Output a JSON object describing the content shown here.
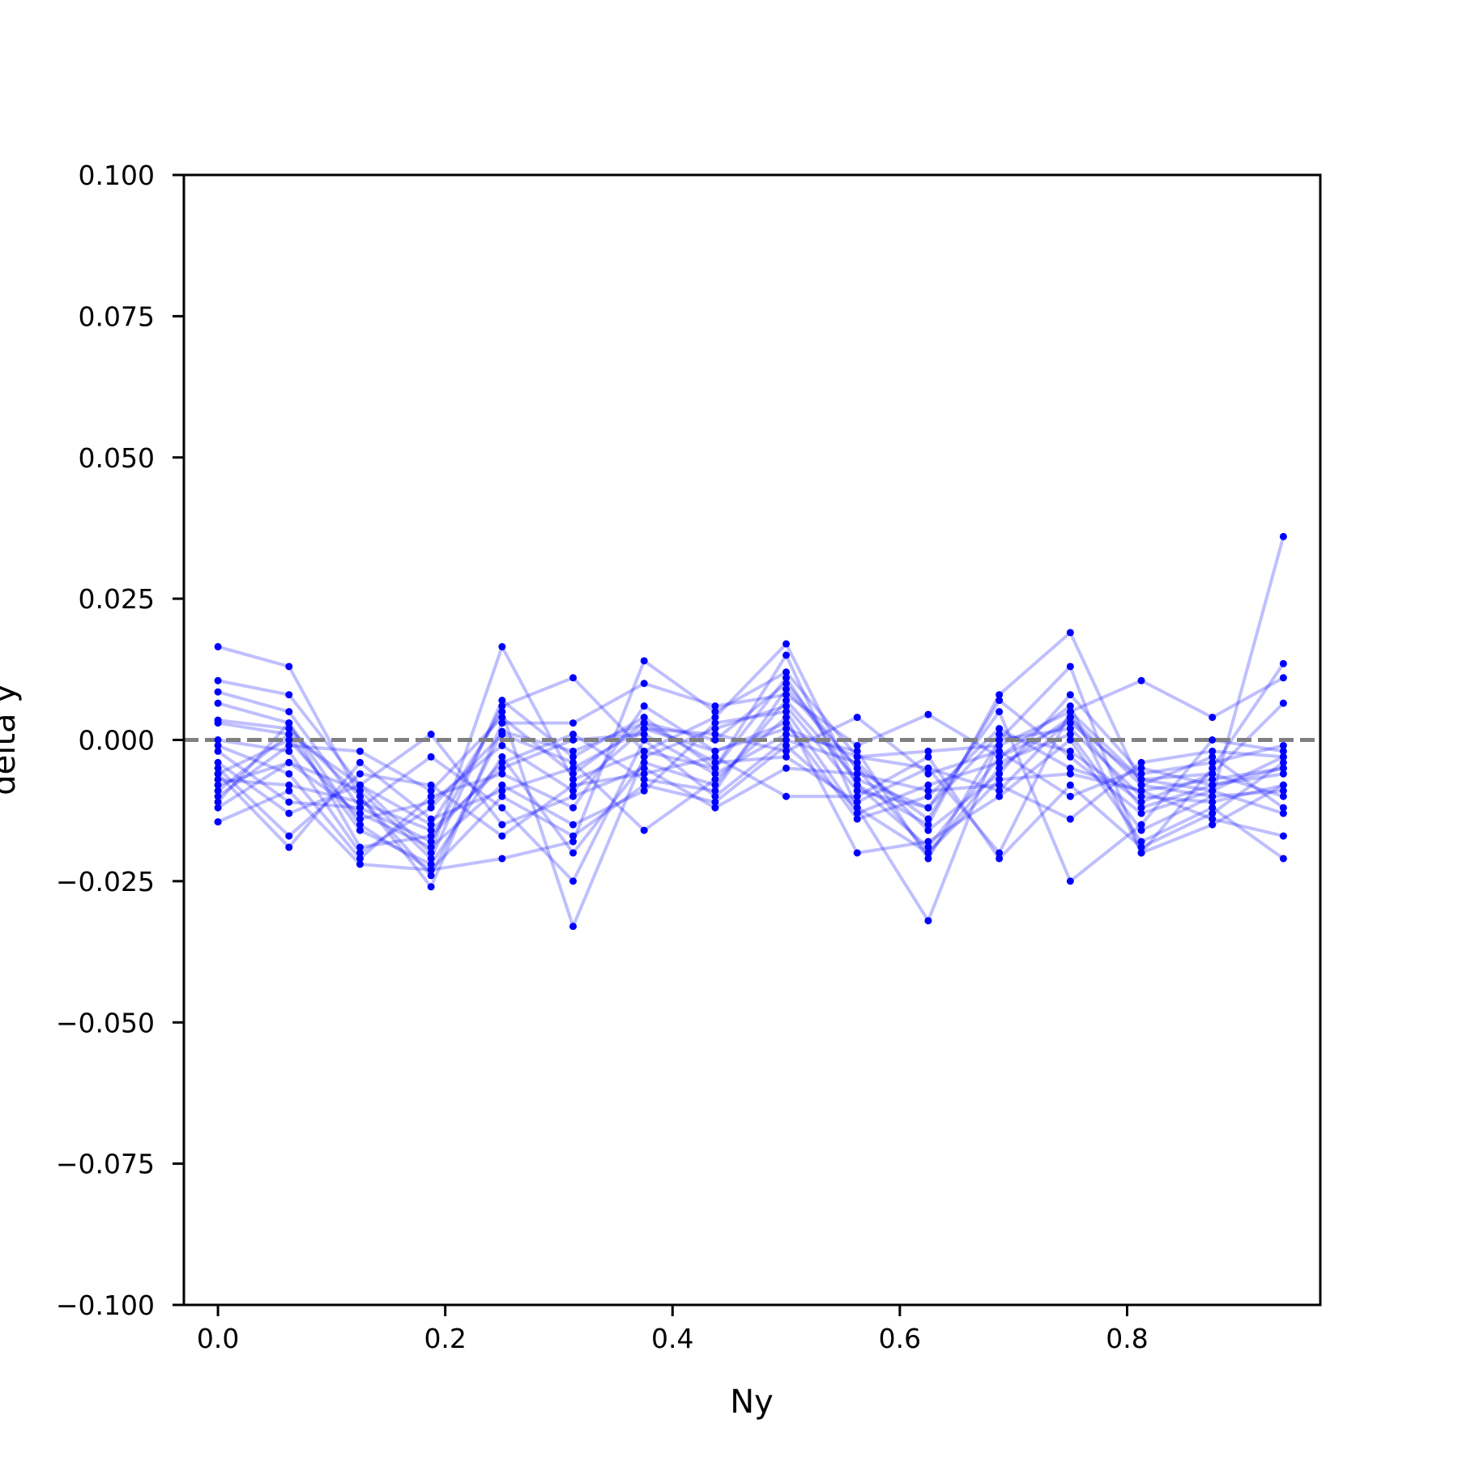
{
  "chart_data": {
    "type": "line",
    "title": "",
    "xlabel": "Ny",
    "ylabel": "delta y",
    "xlim": [
      -0.03,
      0.97
    ],
    "ylim": [
      -0.1,
      0.1
    ],
    "xticks": [
      "0.0",
      "0.2",
      "0.4",
      "0.6",
      "0.8"
    ],
    "yticks": [
      "0.100",
      "0.075",
      "0.050",
      "0.025",
      "0.000",
      "−0.025",
      "−0.050",
      "−0.075",
      "−0.100"
    ],
    "grid": false,
    "legend": "none",
    "reference_line": {
      "y": 0.0,
      "style": "dashed",
      "color": "#808080"
    },
    "series_color": "#0000ff",
    "series_opacity": 0.25,
    "x": [
      0.0,
      0.0625,
      0.125,
      0.1875,
      0.25,
      0.3125,
      0.375,
      0.4375,
      0.5,
      0.5625,
      0.625,
      0.6875,
      0.75,
      0.8125,
      0.875,
      0.9375
    ],
    "series": [
      {
        "values": [
          0.0165,
          0.013,
          -0.01,
          -0.024,
          0.0015,
          -0.002,
          0.003,
          0.0,
          0.01,
          -0.005,
          -0.02,
          -0.005,
          0.004,
          -0.012,
          -0.008,
          -0.005
        ]
      },
      {
        "values": [
          0.0105,
          0.008,
          -0.008,
          -0.02,
          0.0165,
          -0.007,
          -0.002,
          0.004,
          0.017,
          -0.008,
          -0.015,
          0.008,
          0.019,
          -0.008,
          -0.01,
          0.036
        ]
      },
      {
        "values": [
          0.0085,
          0.005,
          -0.012,
          -0.018,
          0.006,
          0.011,
          -0.002,
          -0.005,
          0.015,
          -0.012,
          -0.032,
          0.0,
          0.013,
          -0.02,
          -0.005,
          0.0135
        ]
      },
      {
        "values": [
          0.0065,
          0.003,
          -0.015,
          -0.023,
          -0.021,
          -0.018,
          0.014,
          0.005,
          0.012,
          -0.003,
          -0.005,
          -0.02,
          0.005,
          0.0105,
          0.004,
          0.011
        ]
      },
      {
        "values": [
          0.0035,
          0.002,
          -0.01,
          -0.026,
          0.003,
          0.003,
          0.01,
          0.006,
          0.008,
          -0.001,
          0.0045,
          -0.003,
          0.003,
          -0.007,
          -0.006,
          0.0065
        ]
      },
      {
        "values": [
          0.003,
          0.001,
          -0.008,
          -0.015,
          0.005,
          -0.033,
          -0.003,
          0.002,
          0.006,
          -0.009,
          -0.012,
          0.005,
          -0.025,
          -0.015,
          0.0,
          -0.002
        ]
      },
      {
        "values": [
          0.0,
          -0.002,
          -0.02,
          -0.012,
          0.001,
          -0.004,
          -0.016,
          -0.007,
          0.004,
          -0.02,
          -0.018,
          -0.01,
          0.0,
          -0.018,
          -0.012,
          -0.021
        ]
      },
      {
        "values": [
          -0.001,
          -0.006,
          -0.021,
          -0.01,
          -0.006,
          -0.012,
          0.006,
          -0.002,
          0.003,
          -0.014,
          -0.01,
          0.002,
          -0.005,
          -0.009,
          -0.014,
          -0.017
        ]
      },
      {
        "values": [
          -0.002,
          -0.011,
          -0.012,
          -0.003,
          -0.012,
          -0.025,
          0.0,
          -0.01,
          0.0,
          -0.004,
          -0.016,
          -0.006,
          0.008,
          -0.006,
          -0.004,
          -0.001
        ]
      },
      {
        "values": [
          -0.004,
          -0.013,
          -0.008,
          0.001,
          -0.015,
          -0.01,
          -0.005,
          -0.012,
          -0.005,
          -0.006,
          -0.009,
          -0.008,
          -0.014,
          -0.004,
          -0.002,
          -0.003
        ]
      },
      {
        "values": [
          -0.005,
          -0.017,
          -0.006,
          -0.008,
          -0.017,
          -0.008,
          -0.006,
          -0.003,
          -0.01,
          -0.01,
          -0.003,
          -0.021,
          -0.008,
          -0.019,
          -0.013,
          -0.004
        ]
      },
      {
        "values": [
          -0.006,
          -0.019,
          -0.004,
          -0.014,
          -0.009,
          -0.005,
          0.002,
          0.001,
          -0.002,
          0.004,
          -0.006,
          -0.002,
          -0.01,
          -0.005,
          -0.008,
          -0.006
        ]
      },
      {
        "values": [
          -0.007,
          -0.008,
          -0.011,
          -0.016,
          -0.005,
          0.0,
          0.001,
          -0.006,
          0.001,
          -0.002,
          -0.021,
          0.0,
          0.002,
          -0.01,
          -0.011,
          -0.008
        ]
      },
      {
        "values": [
          -0.008,
          -0.004,
          -0.013,
          -0.019,
          -0.008,
          -0.015,
          -0.009,
          0.003,
          0.005,
          -0.013,
          -0.008,
          -0.004,
          0.001,
          -0.016,
          -0.01,
          -0.009
        ]
      },
      {
        "values": [
          -0.009,
          0.001,
          -0.016,
          -0.022,
          -0.003,
          -0.02,
          -0.004,
          -0.008,
          0.007,
          -0.007,
          -0.012,
          0.001,
          -0.002,
          -0.011,
          -0.006,
          -0.01
        ]
      },
      {
        "values": [
          -0.01,
          -0.001,
          -0.002,
          -0.009,
          0.004,
          -0.006,
          0.003,
          -0.004,
          -0.003,
          -0.011,
          -0.005,
          -0.009,
          0.004,
          -0.008,
          -0.003,
          -0.012
        ]
      },
      {
        "values": [
          -0.011,
          0.003,
          -0.019,
          -0.017,
          -0.004,
          0.001,
          -0.007,
          -0.009,
          0.009,
          -0.005,
          -0.014,
          0.007,
          -0.003,
          -0.013,
          -0.009,
          -0.013
        ]
      },
      {
        "values": [
          -0.012,
          -0.004,
          -0.009,
          -0.021,
          0.007,
          -0.003,
          0.004,
          -0.005,
          0.011,
          -0.008,
          -0.019,
          -0.003,
          0.006,
          -0.02,
          -0.015,
          -0.008
        ]
      },
      {
        "values": [
          -0.0145,
          -0.009,
          -0.022,
          -0.023,
          -0.01,
          -0.017,
          -0.008,
          -0.011,
          -0.001,
          -0.012,
          -0.02,
          -0.007,
          -0.006,
          -0.009,
          -0.007,
          -0.005
        ]
      },
      {
        "values": [
          -0.006,
          0.0,
          -0.014,
          -0.011,
          -0.001,
          -0.009,
          0.002,
          -0.002,
          0.002,
          -0.003,
          -0.002,
          -0.001,
          0.005,
          -0.007,
          -0.009,
          -0.003
        ]
      }
    ]
  }
}
